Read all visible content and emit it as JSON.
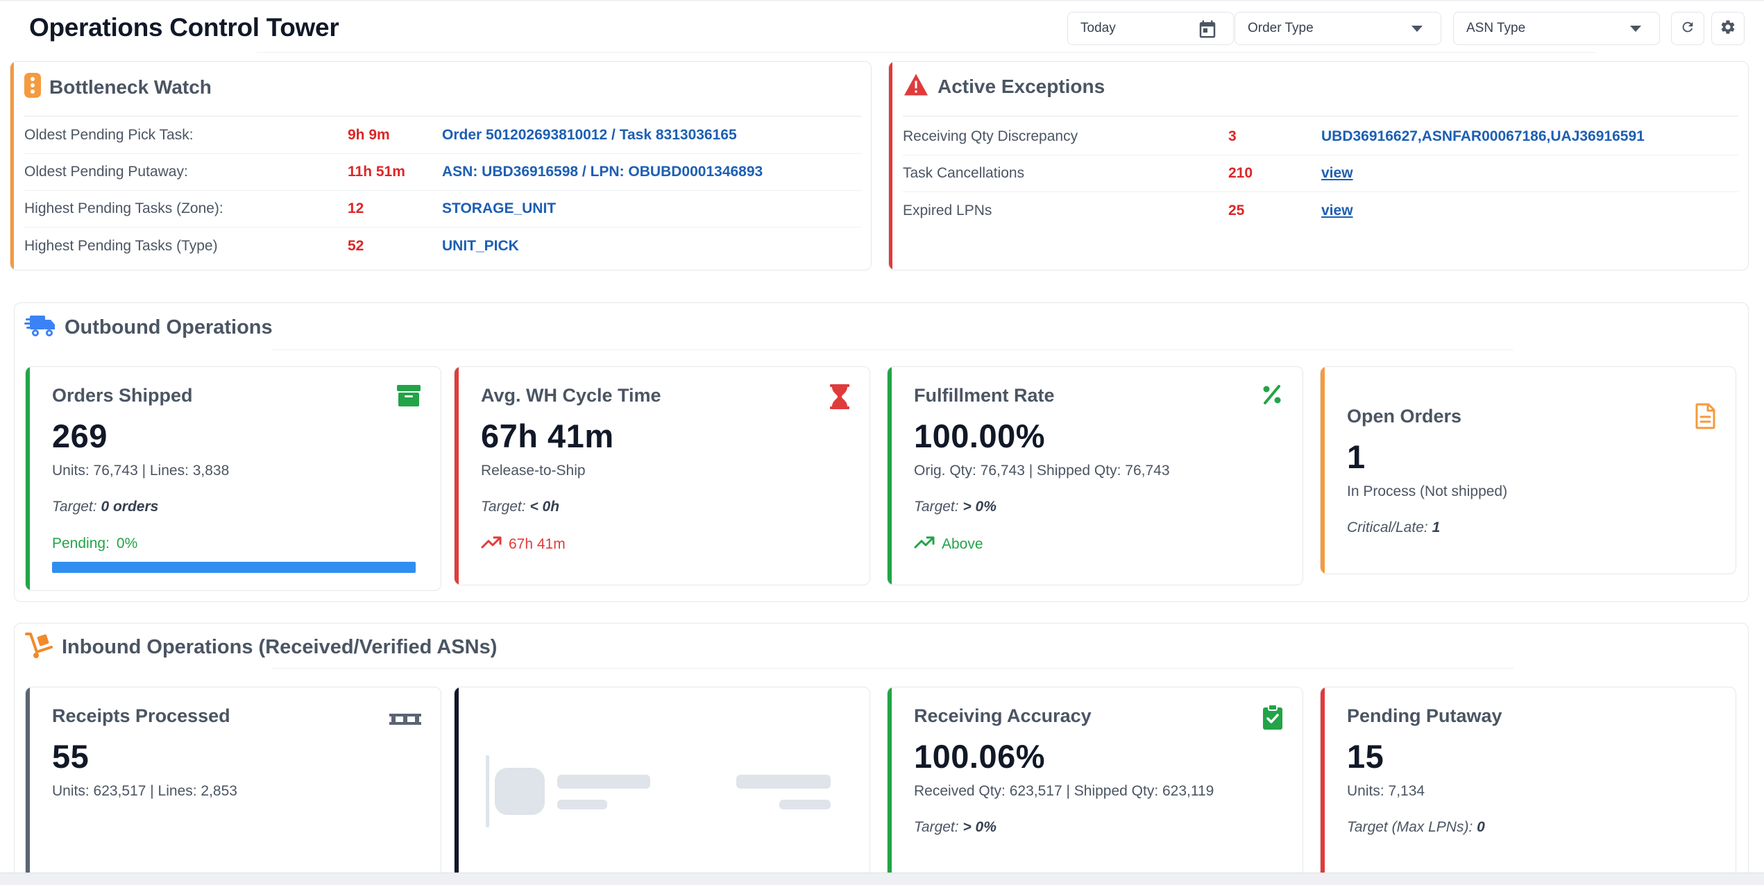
{
  "header": {
    "title": "Operations Control Tower",
    "date_filter": "Today",
    "order_type": "Order Type",
    "asn_type": "ASN Type"
  },
  "bottleneck": {
    "title": "Bottleneck Watch",
    "rows": [
      {
        "label": "Oldest Pending Pick Task:",
        "value": "9h 9m",
        "link": "Order 501202693810012 / Task 8313036165"
      },
      {
        "label": "Oldest Pending Putaway:",
        "value": "11h 51m",
        "link": "ASN: UBD36916598 / LPN: OBUBD0001346893"
      },
      {
        "label": "Highest Pending Tasks (Zone):",
        "value": "12",
        "link": "STORAGE_UNIT"
      },
      {
        "label": "Highest Pending Tasks (Type)",
        "value": "52",
        "link": "UNIT_PICK"
      }
    ]
  },
  "exceptions": {
    "title": "Active Exceptions",
    "rows": [
      {
        "label": "Receiving Qty Discrepancy",
        "value": "3",
        "link": "UBD36916627,ASNFAR00067186,UAJ36916591"
      },
      {
        "label": "Task Cancellations",
        "value": "210",
        "link": "view"
      },
      {
        "label": "Expired LPNs",
        "value": "25",
        "link": "view"
      }
    ]
  },
  "outbound": {
    "title": "Outbound Operations",
    "orders_shipped": {
      "title": "Orders Shipped",
      "value": "269",
      "sub": "Units: 76,743 | Lines: 3,838",
      "target_label": "Target:",
      "target_value": "0 orders",
      "pending_label": "Pending:",
      "pending_value": "0%",
      "progress_fraction": 1.0
    },
    "cycle_time": {
      "title": "Avg. WH Cycle Time",
      "value": "67h 41m",
      "sub": "Release-to-Ship",
      "target_label": "Target:",
      "target_value": "< 0h",
      "trend": "67h 41m"
    },
    "fulfillment": {
      "title": "Fulfillment Rate",
      "value": "100.00%",
      "sub": "Orig. Qty: 76,743 | Shipped Qty: 76,743",
      "target_label": "Target:",
      "target_value": "> 0%",
      "trend": "Above"
    },
    "open_orders": {
      "title": "Open Orders",
      "value": "1",
      "sub": "In Process (Not shipped)",
      "target_label": "Critical/Late:",
      "target_value": "1"
    }
  },
  "inbound": {
    "title": "Inbound Operations (Received/Verified ASNs)",
    "receipts": {
      "title": "Receipts Processed",
      "value": "55",
      "sub": "Units: 623,517 | Lines: 2,853"
    },
    "accuracy": {
      "title": "Receiving Accuracy",
      "value": "100.06%",
      "sub": "Received Qty: 623,517 | Shipped Qty: 623,119",
      "target_label": "Target:",
      "target_value": "> 0%"
    },
    "putaway": {
      "title": "Pending Putaway",
      "value": "15",
      "sub": "Units: 7,134",
      "target_label": "Target (Max LPNs):",
      "target_value": "0"
    }
  },
  "colors": {
    "green": "#22a447",
    "red": "#e03b3b",
    "orange": "#f59a3e",
    "blue": "#2f8ef0",
    "slate": "#5b6473",
    "link": "#1d5fb4"
  }
}
